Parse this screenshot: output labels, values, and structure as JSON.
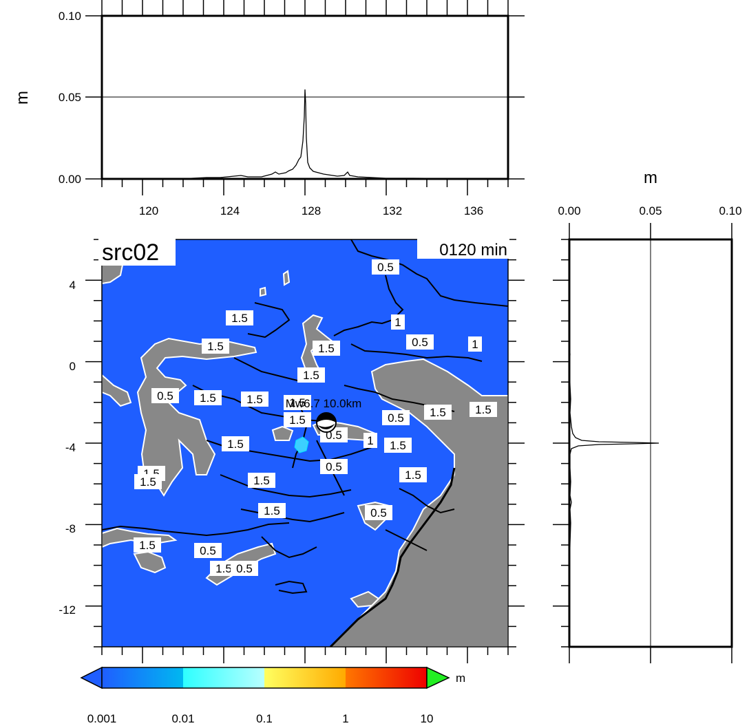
{
  "map": {
    "source_label": "src02",
    "time_label": "0120 min",
    "epicenter_label": "Mw6.7 10.0km",
    "lat_ticks": [
      "4",
      "0",
      "-4",
      "-8",
      "-12"
    ],
    "lon_ticks": [
      "120",
      "124",
      "128",
      "132",
      "136"
    ],
    "contour_labels": [
      "0.5",
      "1",
      "0.5",
      "1",
      "1.5",
      "1.5",
      "1.5",
      "1.5",
      "0.5",
      "1.5",
      "1.5",
      "1.5",
      "0.5",
      "1.5",
      "1.5",
      "1",
      "1.5",
      "1.5",
      "0.5",
      "1.5",
      "1.5",
      "1.5",
      "1.5",
      "1.5",
      "0.5",
      "1.5",
      "0.5",
      "1.5",
      "0.5",
      "1.5",
      "0.5"
    ],
    "colors": {
      "ocean": "#1f5eff",
      "land": "#888888",
      "coast": "#ffffff",
      "contour": "#000000"
    }
  },
  "top_panel": {
    "unit": "m",
    "y_ticks": [
      "0.10",
      "0.05",
      "0.00"
    ],
    "x_ticks": [
      "120",
      "124",
      "128",
      "132",
      "136"
    ],
    "profile": {
      "peak_lon": 127.8,
      "peak_value": 0.055
    }
  },
  "right_panel": {
    "unit": "m",
    "x_ticks": [
      "0.00",
      "0.05",
      "0.10"
    ],
    "profile": {
      "peak_lat": -3.8,
      "peak_value": 0.055
    }
  },
  "colorbar": {
    "unit": "m",
    "ticks": [
      "0.001",
      "0.01",
      "0.1",
      "1",
      "10"
    ],
    "colors": [
      "#1f5eff",
      "#00b6f0",
      "#3cffff",
      "#ffff55",
      "#ffaa00",
      "#ff3300",
      "#ee0000",
      "#22ee22"
    ]
  }
}
